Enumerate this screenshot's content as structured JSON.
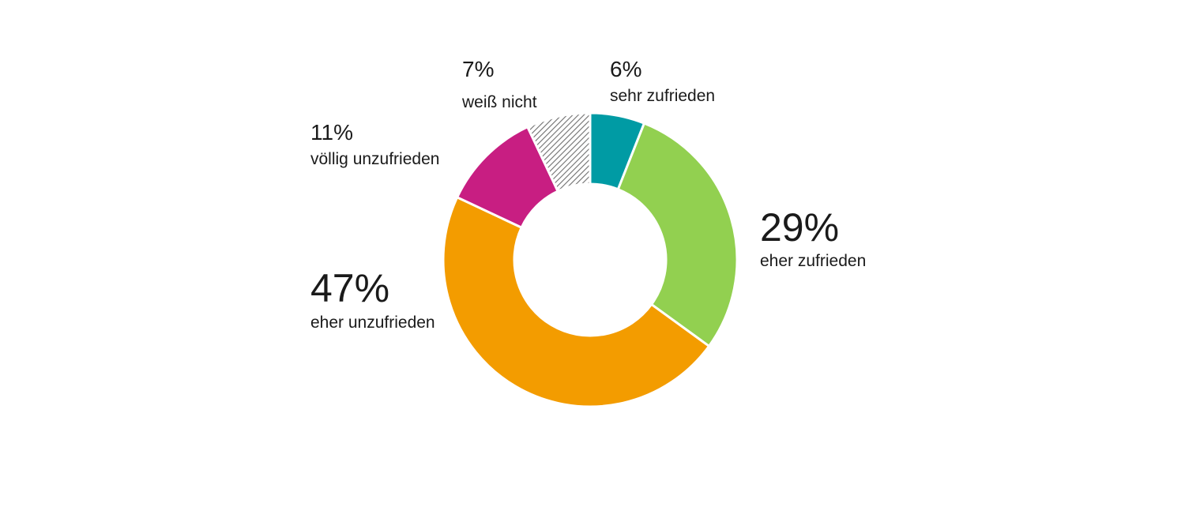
{
  "chart_data": {
    "type": "pie",
    "donut": true,
    "slices": [
      {
        "label": "sehr zufrieden",
        "value": 6,
        "value_label": "6%",
        "color": "#009BA4",
        "pattern": "none"
      },
      {
        "label": "eher zufrieden",
        "value": 29,
        "value_label": "29%",
        "color": "#92D050",
        "pattern": "none"
      },
      {
        "label": "eher unzufrieden",
        "value": 47,
        "value_label": "47%",
        "color": "#F39C00",
        "pattern": "none"
      },
      {
        "label": "völlig unzufrieden",
        "value": 11,
        "value_label": "11%",
        "color": "#C81E82",
        "pattern": "none"
      },
      {
        "label": "weiß nicht",
        "value": 7,
        "value_label": "7%",
        "color": "#7F7F7F",
        "pattern": "diagonal-hatch"
      }
    ],
    "legend": "none"
  }
}
